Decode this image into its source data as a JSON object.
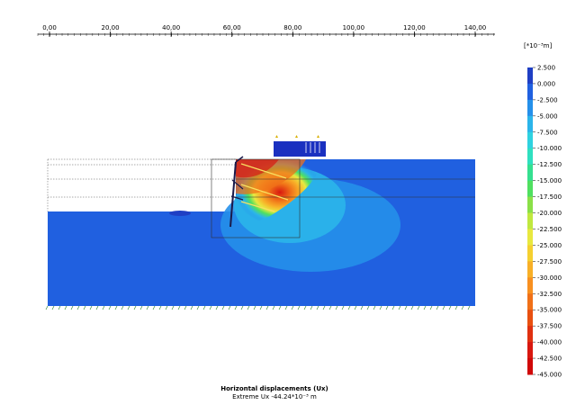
{
  "ruler": {
    "ticks": [
      "0,00",
      "20,00",
      "40,00",
      "60,00",
      "80,00",
      "100,00",
      "120,00",
      "140,00"
    ]
  },
  "legend": {
    "unit": "[*10⁻³m]",
    "values": [
      "2.500",
      "0.000",
      "-2.500",
      "-5.000",
      "-7.500",
      "-10.000",
      "-12.500",
      "-15.000",
      "-17.500",
      "-20.000",
      "-22.500",
      "-25.000",
      "-27.500",
      "-30.000",
      "-32.500",
      "-35.000",
      "-37.500",
      "-40.000",
      "-42.500",
      "-45.000"
    ],
    "colors": [
      "#1f3fc4",
      "#2060e0",
      "#2590ea",
      "#2bb5ea",
      "#2fd2e0",
      "#2fe0c0",
      "#35e090",
      "#50e060",
      "#8ae048",
      "#c0e840",
      "#e8e840",
      "#f5d030",
      "#f8b028",
      "#f89020",
      "#f07018",
      "#e85010",
      "#e03010",
      "#d81810",
      "#d00808"
    ]
  },
  "caption": {
    "title": "Horizontal displacements (Ux)",
    "extreme": "Extreme Ux -44.24*10⁻³ m"
  }
}
